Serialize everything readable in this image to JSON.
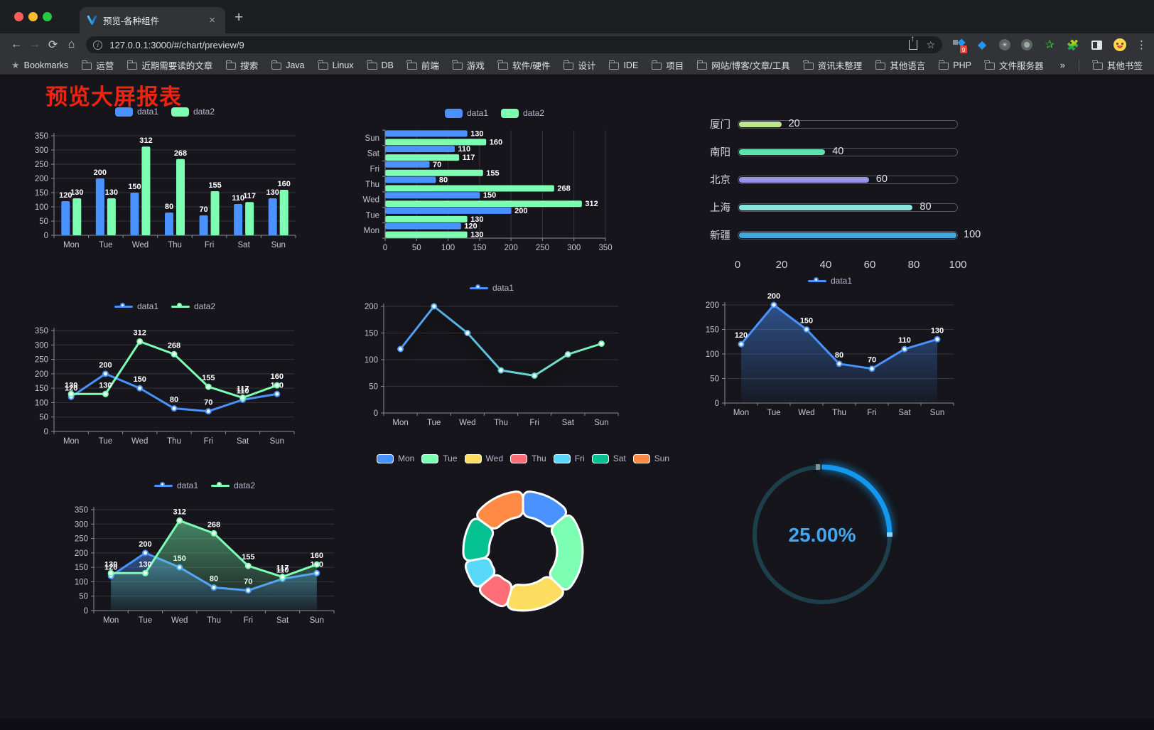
{
  "browser": {
    "tab_title": "预览-各种组件",
    "new_tab_label": "+",
    "close_tab_label": "×",
    "url": "127.0.0.1:3000/#/chart/preview/9",
    "extension_badge": "9",
    "bookmarks_label": "Bookmarks",
    "bookmarks": [
      "运营",
      "近期需要读的文章",
      "搜索",
      "Java",
      "Linux",
      "DB",
      "前端",
      "游戏",
      "软件/硬件",
      "设计",
      "IDE",
      "项目",
      "网站/博客/文章/工具",
      "资讯未整理",
      "其他语言",
      "PHP",
      "文件服务器"
    ],
    "overflow_chevron": "»",
    "other_bookmarks": "其他书签",
    "icons": [
      "back-icon",
      "forward-icon",
      "reload-icon",
      "home-icon",
      "site-info-icon",
      "share-icon",
      "bookmark-star-icon",
      "extension-grid-icon",
      "extension-gem-icon",
      "extension-circle-icon",
      "extension-dot-icon",
      "extension-star-icon",
      "extensions-puzzle-icon",
      "sidebar-icon",
      "profile-avatar",
      "menu-dots-icon",
      "folder-icon"
    ]
  },
  "page": {
    "title": "预览大屏报表",
    "title_color": "#ee2310",
    "background": "#15151b"
  },
  "chart_data": [
    {
      "id": "bar-grouped",
      "type": "bar",
      "legend_position": "top",
      "grid": true,
      "categories": [
        "Mon",
        "Tue",
        "Wed",
        "Thu",
        "Fri",
        "Sat",
        "Sun"
      ],
      "series": [
        {
          "name": "data1",
          "color": "#4992ff",
          "values": [
            120,
            200,
            150,
            80,
            70,
            110,
            130
          ]
        },
        {
          "name": "data2",
          "color": "#7cffb2",
          "values": [
            130,
            130,
            312,
            268,
            155,
            117,
            160
          ]
        }
      ],
      "ylim": [
        0,
        350
      ],
      "ystep": 50,
      "value_labels": true
    },
    {
      "id": "bar-horizontal",
      "type": "bar",
      "orientation": "horizontal",
      "legend_position": "top",
      "grid": true,
      "categories": [
        "Mon",
        "Tue",
        "Wed",
        "Thu",
        "Fri",
        "Sat",
        "Sun"
      ],
      "series": [
        {
          "name": "data1",
          "color": "#4992ff",
          "values": [
            120,
            200,
            150,
            80,
            70,
            110,
            130
          ]
        },
        {
          "name": "data2",
          "color": "#7cffb2",
          "values": [
            130,
            130,
            312,
            268,
            155,
            117,
            160
          ]
        }
      ],
      "xlim": [
        0,
        350
      ],
      "xstep": 50,
      "value_labels": true
    },
    {
      "id": "progress-bars",
      "type": "progress",
      "max": 100,
      "axis_ticks": [
        0,
        20,
        40,
        60,
        80,
        100
      ],
      "items": [
        {
          "label": "厦门",
          "value": 20,
          "color": "#bfe693"
        },
        {
          "label": "南阳",
          "value": 40,
          "color": "#5fe3ad"
        },
        {
          "label": "北京",
          "value": 60,
          "color": "#9693e6"
        },
        {
          "label": "上海",
          "value": 80,
          "color": "#86e3dd"
        },
        {
          "label": "新疆",
          "value": 100,
          "color": "#3fa8dc"
        }
      ]
    },
    {
      "id": "line-dual",
      "type": "line",
      "legend_position": "top",
      "grid": true,
      "categories": [
        "Mon",
        "Tue",
        "Wed",
        "Thu",
        "Fri",
        "Sat",
        "Sun"
      ],
      "series": [
        {
          "name": "data1",
          "color": "#4992ff",
          "values": [
            120,
            200,
            150,
            80,
            70,
            110,
            130
          ]
        },
        {
          "name": "data2",
          "color": "#7cffb2",
          "values": [
            130,
            130,
            312,
            268,
            155,
            117,
            160
          ]
        }
      ],
      "ylim": [
        0,
        350
      ],
      "ystep": 50,
      "value_labels": true
    },
    {
      "id": "line-gradient",
      "type": "line",
      "legend_position": "top",
      "grid": true,
      "categories": [
        "Mon",
        "Tue",
        "Wed",
        "Thu",
        "Fri",
        "Sat",
        "Sun"
      ],
      "series": [
        {
          "name": "data1",
          "gradient": [
            "#4992ff",
            "#7cffb2"
          ],
          "color": "#4992ff",
          "shadow": true,
          "values": [
            120,
            200,
            150,
            80,
            70,
            110,
            130
          ]
        }
      ],
      "ylim": [
        0,
        200
      ],
      "ystep": 50,
      "value_labels": false
    },
    {
      "id": "area-single",
      "type": "line",
      "legend_position": "top",
      "grid": true,
      "categories": [
        "Mon",
        "Tue",
        "Wed",
        "Thu",
        "Fri",
        "Sat",
        "Sun"
      ],
      "series": [
        {
          "name": "data1",
          "color": "#4992ff",
          "area": true,
          "values": [
            120,
            200,
            150,
            80,
            70,
            110,
            130
          ]
        }
      ],
      "ylim": [
        0,
        200
      ],
      "ystep": 50,
      "value_labels": true
    },
    {
      "id": "area-dual",
      "type": "line",
      "legend_position": "top",
      "grid": true,
      "categories": [
        "Mon",
        "Tue",
        "Wed",
        "Thu",
        "Fri",
        "Sat",
        "Sun"
      ],
      "series": [
        {
          "name": "data1",
          "color": "#4992ff",
          "area": true,
          "values": [
            120,
            200,
            150,
            80,
            70,
            110,
            130
          ]
        },
        {
          "name": "data2",
          "color": "#7cffb2",
          "area": true,
          "values": [
            130,
            130,
            312,
            268,
            155,
            117,
            160
          ]
        }
      ],
      "ylim": [
        0,
        350
      ],
      "ystep": 50,
      "value_labels": true
    },
    {
      "id": "pie-donut",
      "type": "pie",
      "legend_position": "top",
      "inner_radius": 48,
      "outer_radius": 84,
      "corner_radius": 11,
      "items": [
        {
          "name": "Mon",
          "value": 120,
          "color": "#4992ff"
        },
        {
          "name": "Tue",
          "value": 200,
          "color": "#7cffb2"
        },
        {
          "name": "Wed",
          "value": 150,
          "color": "#fddd60"
        },
        {
          "name": "Thu",
          "value": 80,
          "color": "#ff6e76"
        },
        {
          "name": "Fri",
          "value": 70,
          "color": "#58d9f9"
        },
        {
          "name": "Sat",
          "value": 110,
          "color": "#05c091"
        },
        {
          "name": "Sun",
          "value": 130,
          "color": "#ff8a45"
        }
      ]
    },
    {
      "id": "gauge-progress",
      "type": "gauge",
      "percent": 25,
      "label": "25.00%",
      "color": "#1398ee",
      "track_color": "#1d3f4c",
      "text_color": "#41a7f0"
    }
  ],
  "chart_style": {
    "axis_label_color": "#c6c6d2",
    "axis_line_color": "#8b8b98",
    "grid_line_color": "rgba(255,255,255,0.13)",
    "value_label_color": "#ffffff",
    "legend_text_color": "#b9b8ce"
  }
}
